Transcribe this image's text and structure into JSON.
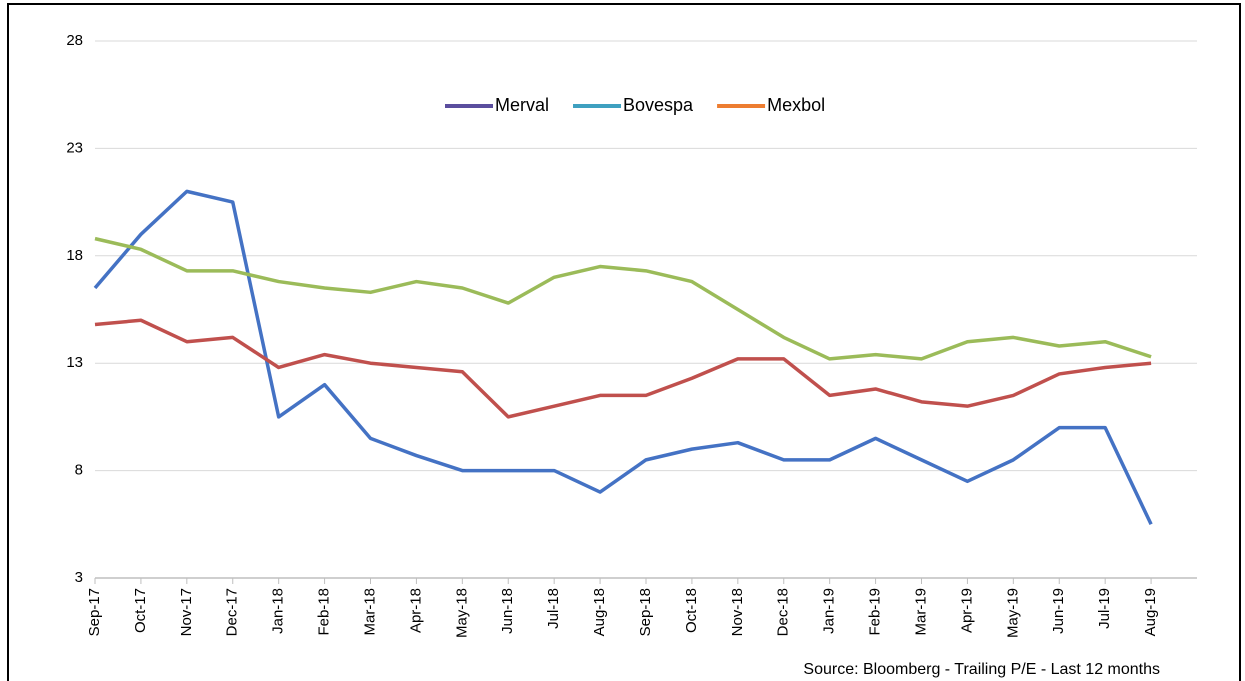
{
  "chart_data": {
    "type": "line",
    "categories": [
      "Sep-17",
      "Oct-17",
      "Nov-17",
      "Dec-17",
      "Jan-18",
      "Feb-18",
      "Mar-18",
      "Apr-18",
      "May-18",
      "Jun-18",
      "Jul-18",
      "Aug-18",
      "Sep-18",
      "Oct-18",
      "Nov-18",
      "Dec-18",
      "Jan-19",
      "Feb-19",
      "Mar-19",
      "Apr-19",
      "May-19",
      "Jun-19",
      "Jul-19",
      "Aug-19"
    ],
    "series": [
      {
        "name": "Merval",
        "color": "#4472c4",
        "legend_color": "#5b4e9e",
        "values": [
          16.5,
          19,
          21,
          20.5,
          10.5,
          12,
          9.5,
          8.7,
          8,
          8,
          8,
          7,
          8.5,
          9,
          9.3,
          8.5,
          8.5,
          9.5,
          8.5,
          7.5,
          8.5,
          10,
          10,
          5.5
        ]
      },
      {
        "name": "Bovespa",
        "color": "#9bbb59",
        "legend_color": "#3ea0c0",
        "values": [
          18.8,
          18.3,
          17.3,
          17.3,
          16.8,
          16.5,
          16.3,
          16.8,
          16.5,
          15.8,
          17,
          17.5,
          17.3,
          16.8,
          15.5,
          14.2,
          13.2,
          13.4,
          13.2,
          14,
          14.2,
          13.8,
          14,
          13.3
        ]
      },
      {
        "name": "Mexbol",
        "color": "#c0504d",
        "legend_color": "#ed7d31",
        "values": [
          14.8,
          15,
          14,
          14.2,
          12.8,
          13.4,
          13,
          12.8,
          12.6,
          10.5,
          11,
          11.5,
          11.5,
          12.3,
          13.2,
          13.2,
          11.5,
          11.8,
          11.2,
          11,
          11.5,
          12.5,
          12.8,
          13
        ]
      }
    ],
    "ylim": [
      3,
      28
    ],
    "yticks": [
      3,
      8,
      13,
      18,
      23,
      28
    ],
    "grid": true,
    "legend": "top",
    "source": "Source: Bloomberg - Trailing P/E - Last 12 months"
  }
}
